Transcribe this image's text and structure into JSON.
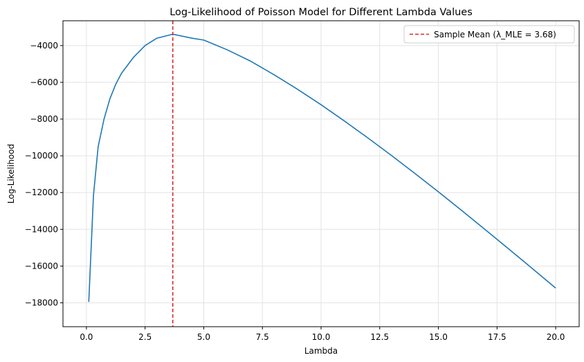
{
  "chart_data": {
    "type": "line",
    "title": "Log-Likelihood of Poisson Model for Different Lambda Values",
    "xlabel": "Lambda",
    "ylabel": "Log-Likelihood",
    "xlim": [
      -1,
      21
    ],
    "ylim": [
      -19300,
      -2650
    ],
    "xticks": [
      0.0,
      2.5,
      5.0,
      7.5,
      10.0,
      12.5,
      15.0,
      17.5,
      20.0
    ],
    "xtick_labels": [
      "0.0",
      "2.5",
      "5.0",
      "7.5",
      "10.0",
      "12.5",
      "15.0",
      "17.5",
      "20.0"
    ],
    "yticks": [
      -18000,
      -16000,
      -14000,
      -12000,
      -10000,
      -8000,
      -6000,
      -4000
    ],
    "ytick_labels": [
      "−18000",
      "−16000",
      "−14000",
      "−12000",
      "−10000",
      "−8000",
      "−6000",
      "−4000"
    ],
    "grid": true,
    "legend_position": "top-right",
    "series": [
      {
        "name": "",
        "color": "#1f77b4",
        "x": [
          0.1,
          0.3,
          0.5,
          0.75,
          1.0,
          1.25,
          1.5,
          2.0,
          2.5,
          3.0,
          3.68,
          4.5,
          5.0,
          6.0,
          7.0,
          8.0,
          9.0,
          10.0,
          11.0,
          12.0,
          13.0,
          14.0,
          15.0,
          16.0,
          17.0,
          18.0,
          19.0,
          20.0
        ],
        "y": [
          -17950,
          -12150,
          -9500,
          -8000,
          -6900,
          -6100,
          -5500,
          -4650,
          -4000,
          -3600,
          -3380,
          -3600,
          -3700,
          -4230,
          -4850,
          -5590,
          -6380,
          -7220,
          -8110,
          -9030,
          -9980,
          -10960,
          -11960,
          -12980,
          -14020,
          -15070,
          -16130,
          -17200
        ]
      }
    ],
    "reference_line": {
      "label": "Sample Mean (λ_MLE = 3.68)",
      "x": 3.68,
      "color": "#d62728",
      "style": "dashed"
    }
  }
}
